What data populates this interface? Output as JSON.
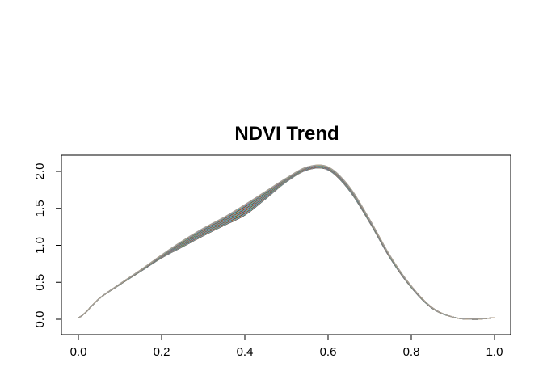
{
  "chart_data": {
    "type": "line",
    "title": "NDVI Trend",
    "xlabel": "",
    "ylabel": "",
    "xlim": [
      0,
      1
    ],
    "ylim": [
      0,
      2.1
    ],
    "x_ticks": [
      "0.0",
      "0.2",
      "0.4",
      "0.6",
      "0.8",
      "1.0"
    ],
    "y_ticks": [
      "0.0",
      "0.5",
      "1.0",
      "1.5",
      "2.0"
    ],
    "grid": false,
    "legend": "none",
    "series_count": 40,
    "series_colors": [
      "#000000",
      "#df536b",
      "#61d04f",
      "#2297e6",
      "#28e2e5",
      "#cd0bbc",
      "#f5c710",
      "#9e9e9e"
    ],
    "x": [
      0.0,
      0.05,
      0.1,
      0.15,
      0.2,
      0.25,
      0.3,
      0.35,
      0.4,
      0.45,
      0.5,
      0.55,
      0.6,
      0.65,
      0.7,
      0.75,
      0.8,
      0.85,
      0.9,
      0.95,
      1.0
    ],
    "upper": [
      0.02,
      0.28,
      0.48,
      0.67,
      0.87,
      1.06,
      1.23,
      1.38,
      1.55,
      1.73,
      1.91,
      2.06,
      2.06,
      1.8,
      1.35,
      0.85,
      0.45,
      0.16,
      0.03,
      0.0,
      0.02
    ],
    "lower": [
      0.02,
      0.28,
      0.47,
      0.65,
      0.83,
      0.98,
      1.13,
      1.27,
      1.41,
      1.63,
      1.86,
      2.02,
      2.02,
      1.75,
      1.31,
      0.82,
      0.43,
      0.15,
      0.03,
      0.0,
      0.02
    ]
  }
}
